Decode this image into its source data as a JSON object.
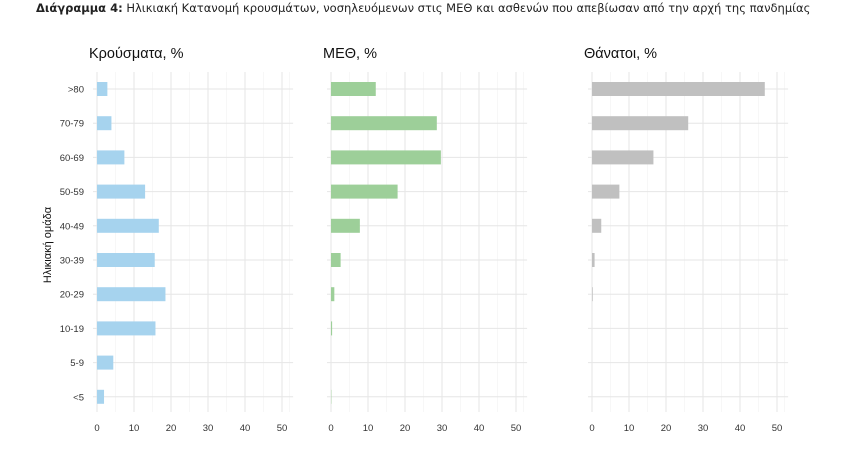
{
  "caption": {
    "label": "Διάγραμμα 4:",
    "text": "Ηλικιακή Κατανομή κρουσμάτων, νοσηλευόμενων στις ΜΕΘ και ασθενών που απεβίωσαν από την αρχή της πανδημίας"
  },
  "chart_data": {
    "type": "bar",
    "orientation": "horizontal",
    "ylabel": "Ηλικιακή ομάδα",
    "categories": [
      ">80",
      "70-79",
      "60-69",
      "50-59",
      "40-49",
      "30-39",
      "20-29",
      "10-19",
      "5-9",
      "<5"
    ],
    "xticks": [
      0,
      10,
      20,
      30,
      40,
      50
    ],
    "xlim": [
      0,
      52
    ],
    "grid": true,
    "panels": [
      {
        "title": "Κρούσματα, %",
        "color": "#a6d3ee",
        "values": [
          2.8,
          3.9,
          7.4,
          13.0,
          16.7,
          15.6,
          18.5,
          15.8,
          4.4,
          1.9
        ]
      },
      {
        "title": "ΜΕΘ, %",
        "color": "#9dcf99",
        "values": [
          12.1,
          28.6,
          29.7,
          18.0,
          7.8,
          2.6,
          0.9,
          0.3,
          0.0,
          0.1
        ]
      },
      {
        "title": "Θάνατοι, %",
        "color": "#c0c0c0",
        "values": [
          46.7,
          26.0,
          16.6,
          7.4,
          2.5,
          0.7,
          0.2,
          0.0,
          0.0,
          0.0
        ]
      }
    ]
  }
}
